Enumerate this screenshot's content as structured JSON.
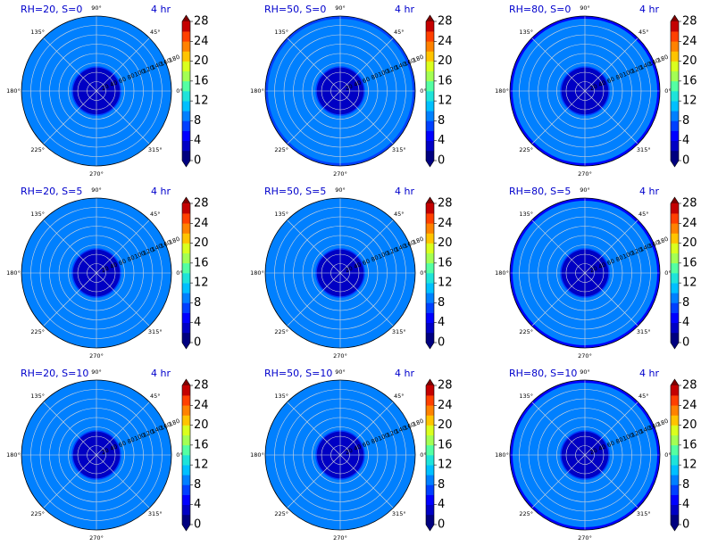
{
  "figure": {
    "title_color": "#0000cc",
    "contour_levels": [
      0,
      2,
      4,
      6,
      8,
      10,
      12,
      14,
      16,
      18,
      20,
      22,
      24,
      26,
      28
    ],
    "contour_colors": [
      "#00007f",
      "#0000c4",
      "#0000ff",
      "#0040ff",
      "#0080ff",
      "#00c0ff",
      "#1ee3da",
      "#54ffa3",
      "#a3ff54",
      "#daff1e",
      "#ffc400",
      "#ff8200",
      "#ff4000",
      "#c40000",
      "#7f0000"
    ],
    "colorbar_ticks": [
      "0",
      "4",
      "8",
      "12",
      "16",
      "20",
      "24",
      "28"
    ],
    "angle_labels": [
      "0°",
      "45°",
      "90°",
      "135°",
      "180°",
      "225°",
      "270°",
      "315°"
    ],
    "radial_ticks": [
      "20",
      "40",
      "60",
      "80",
      "100",
      "120",
      "140",
      "160",
      "180"
    ]
  },
  "chart_data": [
    {
      "type": "heatmap",
      "subtype": "polar-filled-contour",
      "title": "RH=20, S=0",
      "time_label": "4 hr",
      "rh": 20,
      "s": 0,
      "inner_radius": 50,
      "inner_value": 3,
      "outer_value": 8.5,
      "rim_value": 8.5,
      "rmax": 160,
      "levels": [
        0,
        28
      ]
    },
    {
      "type": "heatmap",
      "subtype": "polar-filled-contour",
      "title": "RH=50, S=0",
      "time_label": "4 hr",
      "rh": 50,
      "s": 0,
      "inner_radius": 50,
      "inner_value": 3,
      "outer_value": 8.5,
      "rim_value": 6.5,
      "rmax": 160,
      "levels": [
        0,
        28
      ]
    },
    {
      "type": "heatmap",
      "subtype": "polar-filled-contour",
      "title": "RH=80, S=0",
      "time_label": "4 hr",
      "rh": 80,
      "s": 0,
      "inner_radius": 50,
      "inner_value": 3,
      "outer_value": 8.5,
      "rim_value": 5,
      "rmax": 160,
      "levels": [
        0,
        28
      ]
    },
    {
      "type": "heatmap",
      "subtype": "polar-filled-contour",
      "title": "RH=20, S=5",
      "time_label": "4 hr",
      "rh": 20,
      "s": 5,
      "inner_radius": 50,
      "inner_value": 3,
      "outer_value": 8.5,
      "rim_value": 8.5,
      "rmax": 160,
      "levels": [
        0,
        28
      ]
    },
    {
      "type": "heatmap",
      "subtype": "polar-filled-contour",
      "title": "RH=50, S=5",
      "time_label": "4 hr",
      "rh": 50,
      "s": 5,
      "inner_radius": 50,
      "inner_value": 3,
      "outer_value": 8.5,
      "rim_value": 8.5,
      "rmax": 160,
      "levels": [
        0,
        28
      ]
    },
    {
      "type": "heatmap",
      "subtype": "polar-filled-contour",
      "title": "RH=80, S=5",
      "time_label": "4 hr",
      "rh": 80,
      "s": 5,
      "inner_radius": 50,
      "inner_value": 3,
      "outer_value": 8.5,
      "rim_value": 5,
      "rmax": 160,
      "levels": [
        0,
        28
      ]
    },
    {
      "type": "heatmap",
      "subtype": "polar-filled-contour",
      "title": "RH=20, S=10",
      "time_label": "4 hr",
      "rh": 20,
      "s": 10,
      "inner_radius": 50,
      "inner_value": 3,
      "outer_value": 8.5,
      "rim_value": 8.5,
      "rmax": 160,
      "levels": [
        0,
        28
      ]
    },
    {
      "type": "heatmap",
      "subtype": "polar-filled-contour",
      "title": "RH=50, S=10",
      "time_label": "4 hr",
      "rh": 50,
      "s": 10,
      "inner_radius": 50,
      "inner_value": 3,
      "outer_value": 8.5,
      "rim_value": 8.5,
      "rmax": 160,
      "levels": [
        0,
        28
      ]
    },
    {
      "type": "heatmap",
      "subtype": "polar-filled-contour",
      "title": "RH=80, S=10",
      "time_label": "4 hr",
      "rh": 80,
      "s": 10,
      "inner_radius": 50,
      "inner_value": 3,
      "outer_value": 8.5,
      "rim_value": 5,
      "rmax": 160,
      "levels": [
        0,
        28
      ]
    }
  ]
}
